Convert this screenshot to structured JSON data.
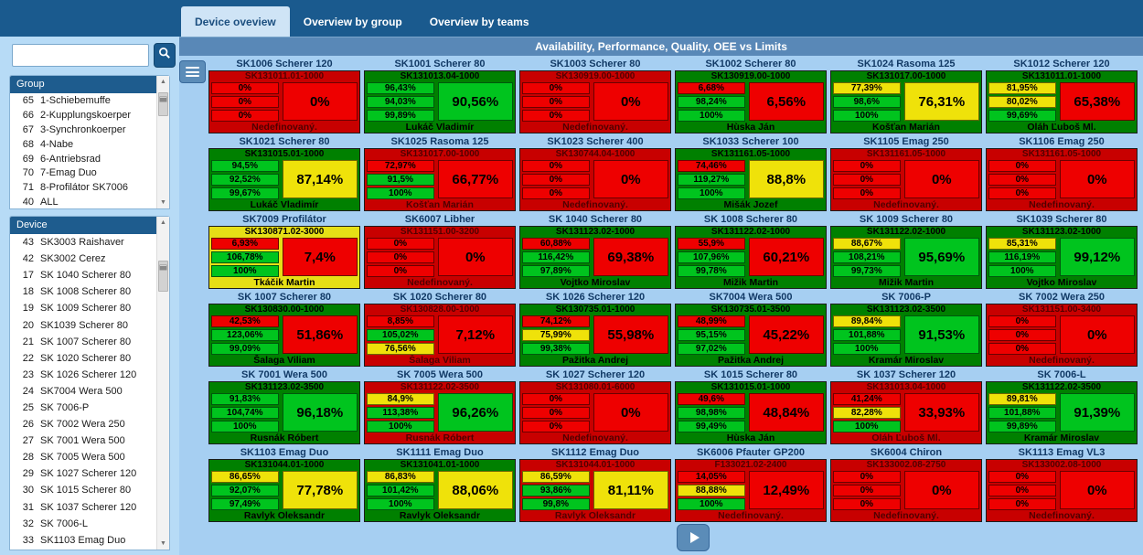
{
  "tabs": [
    {
      "label": "Device oveview",
      "active": true
    },
    {
      "label": "Overview by group",
      "active": false
    },
    {
      "label": "Overview by teams",
      "active": false
    }
  ],
  "header": {
    "title": "Availability, Performance, Quality, OEE vs Limits"
  },
  "sidebar": {
    "search": {
      "value": "",
      "placeholder": "",
      "button_icon": "search-icon"
    },
    "group_panel": {
      "title": "Group",
      "items": [
        {
          "id": "65",
          "label": "1-Schiebemuffe"
        },
        {
          "id": "66",
          "label": "2-Kupplungskoerper"
        },
        {
          "id": "67",
          "label": "3-Synchronkoerper"
        },
        {
          "id": "68",
          "label": "4-Nabe"
        },
        {
          "id": "69",
          "label": "6-Antriebsrad"
        },
        {
          "id": "70",
          "label": "7-Emag Duo"
        },
        {
          "id": "71",
          "label": "8-Profilátor SK7006"
        },
        {
          "id": "40",
          "label": "ALL"
        }
      ]
    },
    "device_panel": {
      "title": "Device",
      "items": [
        {
          "id": "43",
          "label": "SK3003 Raishaver"
        },
        {
          "id": "42",
          "label": "SK3002 Cerez"
        },
        {
          "id": "17",
          "label": "SK 1040 Scherer 80"
        },
        {
          "id": "18",
          "label": "SK 1008 Scherer 80"
        },
        {
          "id": "19",
          "label": "SK 1009 Scherer 80"
        },
        {
          "id": "20",
          "label": "SK1039 Scherer 80"
        },
        {
          "id": "21",
          "label": "SK 1007 Scherer 80"
        },
        {
          "id": "22",
          "label": "SK 1020 Scherer 80"
        },
        {
          "id": "23",
          "label": "SK 1026 Scherer 120"
        },
        {
          "id": "24",
          "label": "SK7004 Wera 500"
        },
        {
          "id": "25",
          "label": "SK 7006-P"
        },
        {
          "id": "26",
          "label": "SK 7002 Wera 250"
        },
        {
          "id": "27",
          "label": "SK 7001 Wera 500"
        },
        {
          "id": "28",
          "label": "SK 7005 Wera 500"
        },
        {
          "id": "29",
          "label": "SK 1027 Scherer 120"
        },
        {
          "id": "30",
          "label": "SK 1015 Scherer 80"
        },
        {
          "id": "31",
          "label": "SK 1037 Scherer 120"
        },
        {
          "id": "32",
          "label": "SK 7006-L"
        },
        {
          "id": "33",
          "label": "SK1103 Emag Duo"
        }
      ]
    }
  },
  "icons": {
    "list_button": "list-icon",
    "play_button": "play-icon",
    "search_button": "search-icon"
  },
  "colors": {
    "tile_green": "#008000",
    "tile_red": "#c80000",
    "tile_yellow": "#e6df16",
    "box_green": "#00c41e",
    "box_red": "#ee0000",
    "box_yellow": "#efe20a",
    "topbar": "#1a5a8e",
    "strip": "#5988b7",
    "background": "#a6cff2"
  },
  "tiles": [
    {
      "title": "SK1006 Scherer 120",
      "code": "SK131011.01-1000",
      "vals": [
        {
          "v": "0%",
          "c": "r"
        },
        {
          "v": "0%",
          "c": "r"
        },
        {
          "v": "0%",
          "c": "r"
        }
      ],
      "big": {
        "v": "0%",
        "c": "r"
      },
      "name": "Nedefinovaný.",
      "bg": "red"
    },
    {
      "title": "SK1001 Scherer 80",
      "code": "SK131013.04-1000",
      "vals": [
        {
          "v": "96,43%",
          "c": "g"
        },
        {
          "v": "94,03%",
          "c": "g"
        },
        {
          "v": "99,89%",
          "c": "g"
        }
      ],
      "big": {
        "v": "90,56%",
        "c": "g"
      },
      "name": "Lukáč Vladimír",
      "bg": "green"
    },
    {
      "title": "SK1003 Scherer 80",
      "code": "SK130919.00-1000",
      "vals": [
        {
          "v": "0%",
          "c": "r"
        },
        {
          "v": "0%",
          "c": "r"
        },
        {
          "v": "0%",
          "c": "r"
        }
      ],
      "big": {
        "v": "0%",
        "c": "r"
      },
      "name": "Nedefinovaný.",
      "bg": "red"
    },
    {
      "title": "SK1002 Scherer 80",
      "code": "SK130919.00-1000",
      "vals": [
        {
          "v": "6,68%",
          "c": "r"
        },
        {
          "v": "98,24%",
          "c": "g"
        },
        {
          "v": "100%",
          "c": "g"
        }
      ],
      "big": {
        "v": "6,56%",
        "c": "r"
      },
      "name": "Hùska Ján",
      "bg": "green"
    },
    {
      "title": "SK1024 Rasoma 125",
      "code": "SK131017.00-1000",
      "vals": [
        {
          "v": "77,39%",
          "c": "y"
        },
        {
          "v": "98,6%",
          "c": "g"
        },
        {
          "v": "100%",
          "c": "g"
        }
      ],
      "big": {
        "v": "76,31%",
        "c": "y"
      },
      "name": "Košťan Marián",
      "bg": "green"
    },
    {
      "title": "SK1012 Scherer 120",
      "code": "SK131011.01-1000",
      "vals": [
        {
          "v": "81,95%",
          "c": "y"
        },
        {
          "v": "80,02%",
          "c": "y"
        },
        {
          "v": "99,69%",
          "c": "g"
        }
      ],
      "big": {
        "v": "65,38%",
        "c": "r"
      },
      "name": "Oláh Ľuboš Ml.",
      "bg": "green"
    },
    {
      "title": "SK1021 Scherer 80",
      "code": "SK131015.01-1000",
      "vals": [
        {
          "v": "94,5%",
          "c": "g"
        },
        {
          "v": "92,52%",
          "c": "g"
        },
        {
          "v": "99,67%",
          "c": "g"
        }
      ],
      "big": {
        "v": "87,14%",
        "c": "y"
      },
      "name": "Lukáč Vladimír",
      "bg": "green"
    },
    {
      "title": "SK1025 Rasoma 125",
      "code": "SK131017.00-1000",
      "vals": [
        {
          "v": "72,97%",
          "c": "r"
        },
        {
          "v": "91,5%",
          "c": "g"
        },
        {
          "v": "100%",
          "c": "g"
        }
      ],
      "big": {
        "v": "66,77%",
        "c": "r"
      },
      "name": "Košťan Marián",
      "bg": "red"
    },
    {
      "title": "SK1023 Scherer 400",
      "code": "SK130744.04-1000",
      "vals": [
        {
          "v": "0%",
          "c": "r"
        },
        {
          "v": "0%",
          "c": "r"
        },
        {
          "v": "0%",
          "c": "r"
        }
      ],
      "big": {
        "v": "0%",
        "c": "r"
      },
      "name": "Nedefinovaný.",
      "bg": "red"
    },
    {
      "title": "SK1033 Scherer 100",
      "code": "SK131161.05-1000",
      "vals": [
        {
          "v": "74,46%",
          "c": "r"
        },
        {
          "v": "119,27%",
          "c": "g"
        },
        {
          "v": "100%",
          "c": "g"
        }
      ],
      "big": {
        "v": "88,8%",
        "c": "y"
      },
      "name": "Mišák Jozef",
      "bg": "green"
    },
    {
      "title": "SK1105 Emag 250",
      "code": "SK131161.05-1000",
      "vals": [
        {
          "v": "0%",
          "c": "r"
        },
        {
          "v": "0%",
          "c": "r"
        },
        {
          "v": "0%",
          "c": "r"
        }
      ],
      "big": {
        "v": "0%",
        "c": "r"
      },
      "name": "Nedefinovaný.",
      "bg": "red"
    },
    {
      "title": "SK1106 Emag 250",
      "code": "SK131161.05-1000",
      "vals": [
        {
          "v": "0%",
          "c": "r"
        },
        {
          "v": "0%",
          "c": "r"
        },
        {
          "v": "0%",
          "c": "r"
        }
      ],
      "big": {
        "v": "0%",
        "c": "r"
      },
      "name": "Nedefinovaný.",
      "bg": "red"
    },
    {
      "title": "SK7009 Profilátor",
      "code": "SK130871.02-3000",
      "vals": [
        {
          "v": "6,93%",
          "c": "r"
        },
        {
          "v": "106,78%",
          "c": "g"
        },
        {
          "v": "100%",
          "c": "g"
        }
      ],
      "big": {
        "v": "7,4%",
        "c": "r"
      },
      "name": "Tkáčik Martin",
      "bg": "yellow"
    },
    {
      "title": "SK6007 Libher",
      "code": "SK131151.00-3200",
      "vals": [
        {
          "v": "0%",
          "c": "r"
        },
        {
          "v": "0%",
          "c": "r"
        },
        {
          "v": "0%",
          "c": "r"
        }
      ],
      "big": {
        "v": "0%",
        "c": "r"
      },
      "name": "Nedefinovaný.",
      "bg": "red"
    },
    {
      "title": "SK 1040 Scherer 80",
      "code": "SK131123.02-1000",
      "vals": [
        {
          "v": "60,88%",
          "c": "r"
        },
        {
          "v": "116,42%",
          "c": "g"
        },
        {
          "v": "97,89%",
          "c": "g"
        }
      ],
      "big": {
        "v": "69,38%",
        "c": "r"
      },
      "name": "Vojtko Miroslav",
      "bg": "green"
    },
    {
      "title": "SK 1008 Scherer 80",
      "code": "SK131122.02-1000",
      "vals": [
        {
          "v": "55,9%",
          "c": "r"
        },
        {
          "v": "107,96%",
          "c": "g"
        },
        {
          "v": "99,78%",
          "c": "g"
        }
      ],
      "big": {
        "v": "60,21%",
        "c": "r"
      },
      "name": "Mižik Martin",
      "bg": "green"
    },
    {
      "title": "SK 1009 Scherer 80",
      "code": "SK131122.02-1000",
      "vals": [
        {
          "v": "88,67%",
          "c": "y"
        },
        {
          "v": "108,21%",
          "c": "g"
        },
        {
          "v": "99,73%",
          "c": "g"
        }
      ],
      "big": {
        "v": "95,69%",
        "c": "g"
      },
      "name": "Mižik Martin",
      "bg": "green"
    },
    {
      "title": "SK1039 Scherer 80",
      "code": "SK131123.02-1000",
      "vals": [
        {
          "v": "85,31%",
          "c": "y"
        },
        {
          "v": "116,19%",
          "c": "g"
        },
        {
          "v": "100%",
          "c": "g"
        }
      ],
      "big": {
        "v": "99,12%",
        "c": "g"
      },
      "name": "Vojtko Miroslav",
      "bg": "green"
    },
    {
      "title": "SK 1007 Scherer 80",
      "code": "SK130830.00-1000",
      "vals": [
        {
          "v": "42,53%",
          "c": "r"
        },
        {
          "v": "123,06%",
          "c": "g"
        },
        {
          "v": "99,09%",
          "c": "g"
        }
      ],
      "big": {
        "v": "51,86%",
        "c": "r"
      },
      "name": "Šalaga Viliam",
      "bg": "green"
    },
    {
      "title": "SK 1020 Scherer 80",
      "code": "SK130828.00-1000",
      "vals": [
        {
          "v": "8,85%",
          "c": "r"
        },
        {
          "v": "105,02%",
          "c": "g"
        },
        {
          "v": "76,56%",
          "c": "y"
        }
      ],
      "big": {
        "v": "7,12%",
        "c": "r"
      },
      "name": "Šalaga Viliam",
      "bg": "red"
    },
    {
      "title": "SK 1026 Scherer 120",
      "code": "SK130735.01-1000",
      "vals": [
        {
          "v": "74,12%",
          "c": "r"
        },
        {
          "v": "75,99%",
          "c": "y"
        },
        {
          "v": "99,38%",
          "c": "g"
        }
      ],
      "big": {
        "v": "55,98%",
        "c": "r"
      },
      "name": "Pažitka Andrej",
      "bg": "green"
    },
    {
      "title": "SK7004 Wera 500",
      "code": "SK130735.01-3500",
      "vals": [
        {
          "v": "48,99%",
          "c": "r"
        },
        {
          "v": "95,15%",
          "c": "g"
        },
        {
          "v": "97,02%",
          "c": "g"
        }
      ],
      "big": {
        "v": "45,22%",
        "c": "r"
      },
      "name": "Pažitka Andrej",
      "bg": "green"
    },
    {
      "title": "SK 7006-P",
      "code": "SK131123.02-3500",
      "vals": [
        {
          "v": "89,84%",
          "c": "y"
        },
        {
          "v": "101,88%",
          "c": "g"
        },
        {
          "v": "100%",
          "c": "g"
        }
      ],
      "big": {
        "v": "91,53%",
        "c": "g"
      },
      "name": "Kramár Miroslav",
      "bg": "green"
    },
    {
      "title": "SK 7002 Wera 250",
      "code": "SK131151.00-3400",
      "vals": [
        {
          "v": "0%",
          "c": "r"
        },
        {
          "v": "0%",
          "c": "r"
        },
        {
          "v": "0%",
          "c": "r"
        }
      ],
      "big": {
        "v": "0%",
        "c": "r"
      },
      "name": "Nedefinovaný.",
      "bg": "red"
    },
    {
      "title": "SK 7001 Wera 500",
      "code": "SK131123.02-3500",
      "vals": [
        {
          "v": "91,83%",
          "c": "g"
        },
        {
          "v": "104,74%",
          "c": "g"
        },
        {
          "v": "100%",
          "c": "g"
        }
      ],
      "big": {
        "v": "96,18%",
        "c": "g"
      },
      "name": "Rusnák Róbert",
      "bg": "green"
    },
    {
      "title": "SK 7005 Wera 500",
      "code": "SK131122.02-3500",
      "vals": [
        {
          "v": "84,9%",
          "c": "y"
        },
        {
          "v": "113,38%",
          "c": "g"
        },
        {
          "v": "100%",
          "c": "g"
        }
      ],
      "big": {
        "v": "96,26%",
        "c": "g"
      },
      "name": "Rusnák Róbert",
      "bg": "red"
    },
    {
      "title": "SK 1027 Scherer 120",
      "code": "SK131080.01-6000",
      "vals": [
        {
          "v": "0%",
          "c": "r"
        },
        {
          "v": "0%",
          "c": "r"
        },
        {
          "v": "0%",
          "c": "r"
        }
      ],
      "big": {
        "v": "0%",
        "c": "r"
      },
      "name": "Nedefinovaný.",
      "bg": "red"
    },
    {
      "title": "SK 1015 Scherer 80",
      "code": "SK131015.01-1000",
      "vals": [
        {
          "v": "49,6%",
          "c": "r"
        },
        {
          "v": "98,98%",
          "c": "g"
        },
        {
          "v": "99,49%",
          "c": "g"
        }
      ],
      "big": {
        "v": "48,84%",
        "c": "r"
      },
      "name": "Hùska Ján",
      "bg": "green"
    },
    {
      "title": "SK 1037 Scherer 120",
      "code": "SK131013.04-1000",
      "vals": [
        {
          "v": "41,24%",
          "c": "r"
        },
        {
          "v": "82,28%",
          "c": "y"
        },
        {
          "v": "100%",
          "c": "g"
        }
      ],
      "big": {
        "v": "33,93%",
        "c": "r"
      },
      "name": "Oláh Ľuboš Ml.",
      "bg": "red"
    },
    {
      "title": "SK 7006-L",
      "code": "SK131122.02-3500",
      "vals": [
        {
          "v": "89,81%",
          "c": "y"
        },
        {
          "v": "101,88%",
          "c": "g"
        },
        {
          "v": "99,89%",
          "c": "g"
        }
      ],
      "big": {
        "v": "91,39%",
        "c": "g"
      },
      "name": "Kramár Miroslav",
      "bg": "green"
    },
    {
      "title": "SK1103 Emag Duo",
      "code": "SK131044.01-1000",
      "vals": [
        {
          "v": "86,65%",
          "c": "y"
        },
        {
          "v": "92,07%",
          "c": "g"
        },
        {
          "v": "97,49%",
          "c": "g"
        }
      ],
      "big": {
        "v": "77,78%",
        "c": "y"
      },
      "name": "Ravlyk Oleksandr",
      "bg": "green"
    },
    {
      "title": "SK1111 Emag Duo",
      "code": "SK131041.01-1000",
      "vals": [
        {
          "v": "86,83%",
          "c": "y"
        },
        {
          "v": "101,42%",
          "c": "g"
        },
        {
          "v": "100%",
          "c": "g"
        }
      ],
      "big": {
        "v": "88,06%",
        "c": "y"
      },
      "name": "Ravlyk Oleksandr",
      "bg": "green"
    },
    {
      "title": "SK1112 Emag Duo",
      "code": "SK131044.01-1000",
      "vals": [
        {
          "v": "86,59%",
          "c": "y"
        },
        {
          "v": "93,86%",
          "c": "g"
        },
        {
          "v": "99,8%",
          "c": "g"
        }
      ],
      "big": {
        "v": "81,11%",
        "c": "y"
      },
      "name": "Ravlyk Oleksandr",
      "bg": "red"
    },
    {
      "title": "SK6006 Pfauter GP200",
      "code": "F133021.02-2400",
      "vals": [
        {
          "v": "14,05%",
          "c": "r"
        },
        {
          "v": "88,88%",
          "c": "y"
        },
        {
          "v": "100%",
          "c": "g"
        }
      ],
      "big": {
        "v": "12,49%",
        "c": "r"
      },
      "name": "Nedefinovaný.",
      "bg": "red"
    },
    {
      "title": "SK6004 Chiron",
      "code": "SK133002.08-2750",
      "vals": [
        {
          "v": "0%",
          "c": "r"
        },
        {
          "v": "0%",
          "c": "r"
        },
        {
          "v": "0%",
          "c": "r"
        }
      ],
      "big": {
        "v": "0%",
        "c": "r"
      },
      "name": "Nedefinovaný.",
      "bg": "red"
    },
    {
      "title": "SK1113 Emag VL3",
      "code": "SK133002.08-1000",
      "vals": [
        {
          "v": "0%",
          "c": "r"
        },
        {
          "v": "0%",
          "c": "r"
        },
        {
          "v": "0%",
          "c": "r"
        }
      ],
      "big": {
        "v": "0%",
        "c": "r"
      },
      "name": "Nedefinovaný.",
      "bg": "red"
    }
  ]
}
